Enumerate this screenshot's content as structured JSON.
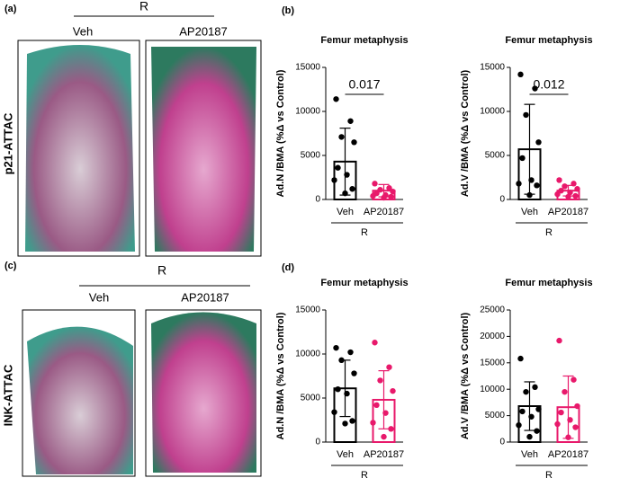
{
  "image_panels": [
    {
      "label": "(a)",
      "group": "R",
      "columns": [
        "Veh",
        "AP20187"
      ],
      "row_label": "p21-ATTAC"
    },
    {
      "label": "(c)",
      "group": "R",
      "columns": [
        "Veh",
        "AP20187"
      ],
      "row_label": "INK-ATTAC"
    }
  ],
  "chart_panel_labels": [
    "(b)",
    "(d)"
  ],
  "chart_data": [
    {
      "type": "bar",
      "title": "Femur metaphysis",
      "ylabel": "Ad.N /BMA (%Δ vs Control)",
      "group_label": "R",
      "categories": [
        "Veh",
        "AP20187"
      ],
      "colors": [
        "#000000",
        "#e8196b"
      ],
      "values": [
        4300,
        1000
      ],
      "errors": [
        3800,
        700
      ],
      "points": [
        [
          11400,
          8900,
          7100,
          6500,
          3600,
          2800,
          2200,
          1200,
          700
        ],
        [
          1800,
          1300,
          1100,
          900,
          700,
          500,
          400,
          300,
          200
        ]
      ],
      "annotation": "0.017",
      "ylim": [
        0,
        15000
      ],
      "yticks": [
        0,
        5000,
        10000,
        15000
      ]
    },
    {
      "type": "bar",
      "title": "Femur metaphysis",
      "ylabel": "Ad.V /BMA (%Δ vs Control)",
      "group_label": "R",
      "categories": [
        "Veh",
        "AP20187"
      ],
      "colors": [
        "#000000",
        "#e8196b"
      ],
      "values": [
        5700,
        1000
      ],
      "errors": [
        5100,
        600
      ],
      "points": [
        [
          14200,
          12600,
          9600,
          6500,
          4700,
          2200,
          1800,
          1600,
          500
        ],
        [
          2200,
          1800,
          1500,
          1200,
          1000,
          800,
          600,
          400,
          300
        ]
      ],
      "annotation": "0.012",
      "ylim": [
        0,
        15000
      ],
      "yticks": [
        0,
        5000,
        10000,
        15000
      ]
    },
    {
      "type": "bar",
      "title": "Femur metaphysis",
      "ylabel": "Ad.N /BMA (%Δ vs Control)",
      "group_label": "R",
      "categories": [
        "Veh",
        "AP20187"
      ],
      "colors": [
        "#000000",
        "#e8196b"
      ],
      "values": [
        6100,
        4800
      ],
      "errors": [
        3200,
        3300
      ],
      "points": [
        [
          10700,
          10200,
          9300,
          7800,
          6000,
          5500,
          3400,
          2400,
          2100
        ],
        [
          11300,
          8500,
          7000,
          5800,
          4200,
          3300,
          2200,
          1500,
          600
        ]
      ],
      "ylim": [
        0,
        15000
      ],
      "yticks": [
        0,
        5000,
        10000,
        15000
      ]
    },
    {
      "type": "bar",
      "title": "Femur metaphysis",
      "ylabel": "Ad.V /BMA (%Δ vs Control)",
      "group_label": "R",
      "categories": [
        "Veh",
        "AP20187"
      ],
      "colors": [
        "#000000",
        "#e8196b"
      ],
      "values": [
        6800,
        6600
      ],
      "errors": [
        4600,
        5900
      ],
      "points": [
        [
          15800,
          10400,
          9500,
          6200,
          5800,
          4800,
          3200,
          2100,
          1000
        ],
        [
          19200,
          11800,
          9500,
          6800,
          5600,
          4200,
          3400,
          2800,
          900
        ]
      ],
      "ylim": [
        0,
        25000
      ],
      "yticks": [
        0,
        5000,
        10000,
        15000,
        20000,
        25000
      ]
    }
  ]
}
